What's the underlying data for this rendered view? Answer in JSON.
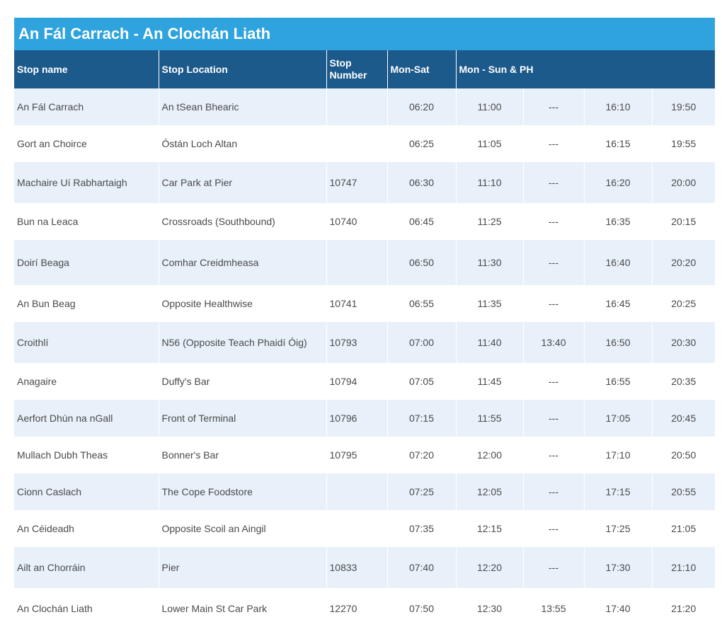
{
  "title": "An Fál Carrach - An Clochán Liath",
  "headers": {
    "stop_name": "Stop name",
    "stop_location": "Stop Location",
    "stop_number": "Stop Number",
    "mon_sat": "Mon-Sat",
    "mon_sun_ph": "Mon - Sun & PH"
  },
  "rows": [
    {
      "stop_name": "An Fál Carrach",
      "stop_location": "An tSean Bhearic",
      "stop_number": "",
      "times": [
        "06:20",
        "11:00",
        "---",
        "16:10",
        "19:50"
      ]
    },
    {
      "stop_name": "Gort an Choirce",
      "stop_location": "Óstán Loch Altan",
      "stop_number": "",
      "times": [
        "06:25",
        "11:05",
        "---",
        "16:15",
        "19:55"
      ]
    },
    {
      "stop_name": "Machaire Uí Rabhartaigh",
      "stop_location": "Car Park at Pier",
      "stop_number": "10747",
      "times": [
        "06:30",
        "11:10",
        "---",
        "16:20",
        "20:00"
      ]
    },
    {
      "stop_name": "Bun na Leaca",
      "stop_location": "Crossroads (Southbound)",
      "stop_number": "10740",
      "times": [
        "06:45",
        "11:25",
        "---",
        "16:35",
        "20:15"
      ]
    },
    {
      "stop_name": "Doirí Beaga",
      "stop_location": "Comhar Creidmheasa",
      "stop_number": "",
      "times": [
        "06:50",
        "11:30",
        "---",
        "16:40",
        "20:20"
      ]
    },
    {
      "stop_name": "An Bun Beag",
      "stop_location": "Opposite Healthwise",
      "stop_number": "10741",
      "times": [
        "06:55",
        "11:35",
        "---",
        "16:45",
        "20:25"
      ]
    },
    {
      "stop_name": "Croithlí",
      "stop_location": "N56 (Opposite Teach Phaidí Óig)",
      "stop_number": "10793",
      "times": [
        "07:00",
        "11:40",
        "13:40",
        "16:50",
        "20:30"
      ]
    },
    {
      "stop_name": "Anagaire",
      "stop_location": "Duffy's Bar",
      "stop_number": "10794",
      "times": [
        "07:05",
        "11:45",
        "---",
        "16:55",
        "20:35"
      ]
    },
    {
      "stop_name": "Aerfort Dhún na nGall",
      "stop_location": "Front of Terminal",
      "stop_number": "10796",
      "times": [
        "07:15",
        "11:55",
        "---",
        "17:05",
        "20:45"
      ]
    },
    {
      "stop_name": "Mullach Dubh Theas",
      "stop_location": "Bonner's Bar",
      "stop_number": "10795",
      "times": [
        "07:20",
        "12:00",
        "---",
        "17:10",
        "20:50"
      ]
    },
    {
      "stop_name": "Cionn Caslach",
      "stop_location": "The Cope Foodstore",
      "stop_number": "",
      "times": [
        "07:25",
        "12:05",
        "---",
        "17:15",
        "20:55"
      ]
    },
    {
      "stop_name": "An Céideadh",
      "stop_location": "Opposite Scoil an Aingil",
      "stop_number": "",
      "times": [
        "07:35",
        "12:15",
        "---",
        "17:25",
        "21:05"
      ]
    },
    {
      "stop_name": "Ailt an Chorráin",
      "stop_location": "Pier",
      "stop_number": "10833",
      "times": [
        "07:40",
        "12:20",
        "---",
        "17:30",
        "21:10"
      ]
    },
    {
      "stop_name": "An Clochán Liath",
      "stop_location": "Lower Main St Car Park",
      "stop_number": "12270",
      "times": [
        "07:50",
        "12:30",
        "13:55",
        "17:40",
        "21:20"
      ]
    }
  ],
  "colors": {
    "title_bg": "#2fa3dd",
    "header_bg": "#1d5a8c",
    "row_alt_bg": "#e8f1fa",
    "text": "#4a4a4a"
  }
}
